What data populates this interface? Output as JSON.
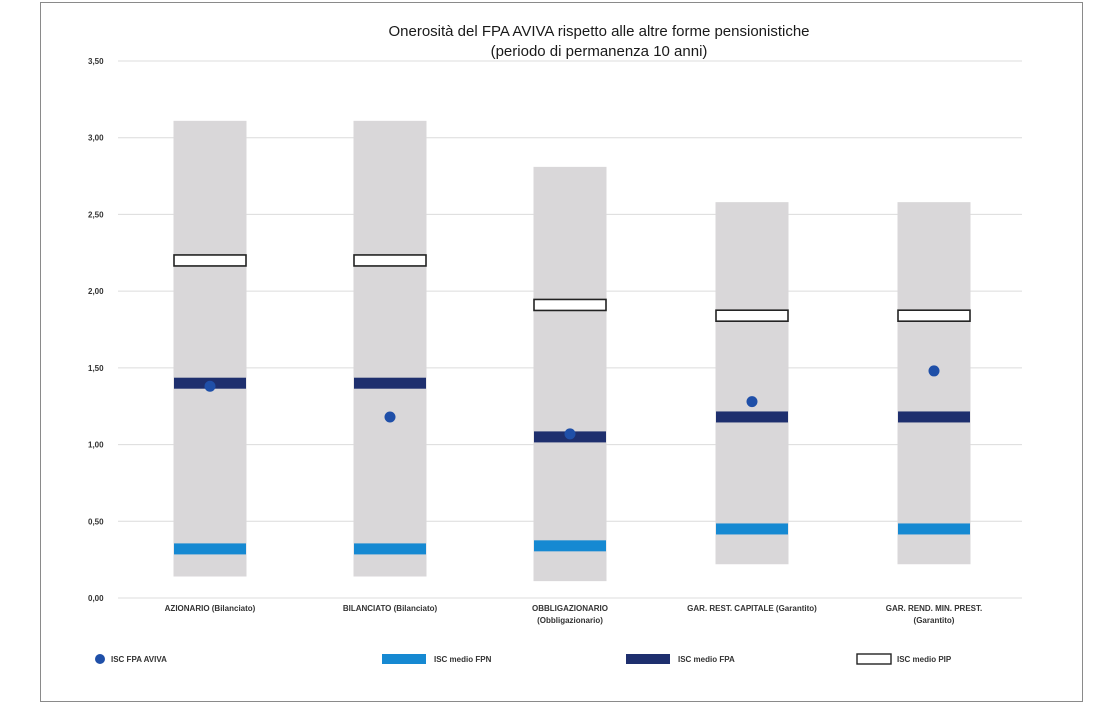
{
  "chart_data": {
    "type": "bar",
    "title": [
      "Onerosità del FPA AVIVA rispetto alle altre forme pensionistiche",
      "(periodo di permanenza 10 anni)"
    ],
    "ylim": [
      0,
      3.5
    ],
    "yticks": [
      "0,00",
      "0,50",
      "1,00",
      "1,50",
      "2,00",
      "2,50",
      "3,00",
      "3,50"
    ],
    "categories": [
      [
        "AZIONARIO (Bilanciato)"
      ],
      [
        "BILANCIATO (Bilanciato)"
      ],
      [
        "OBBLIGAZIONARIO",
        "(Obbligazionario)"
      ],
      [
        "GAR. REST. CAPITALE (Garantito)"
      ],
      [
        "GAR. REND. MIN. PREST.",
        "(Garantito)"
      ]
    ],
    "range_bars": [
      {
        "low": 0.14,
        "high": 3.11
      },
      {
        "low": 0.14,
        "high": 3.11
      },
      {
        "low": 0.11,
        "high": 2.81
      },
      {
        "low": 0.22,
        "high": 2.58
      },
      {
        "low": 0.22,
        "high": 2.58
      }
    ],
    "series": [
      {
        "name": "ISC FPA AVIVA",
        "marker": "dot",
        "color": "#1f4fa8",
        "values": [
          1.38,
          1.18,
          1.07,
          1.28,
          1.48
        ]
      },
      {
        "name": "ISC medio FPN",
        "marker": "dash",
        "color": "#1689d2",
        "values": [
          0.32,
          0.32,
          0.34,
          0.45,
          0.45
        ]
      },
      {
        "name": "ISC medio FPA",
        "marker": "dash",
        "color": "#1e2f6e",
        "values": [
          1.4,
          1.4,
          1.05,
          1.18,
          1.18
        ]
      },
      {
        "name": "ISC medio PIP",
        "marker": "hollow",
        "color": "#ffffff",
        "values": [
          2.2,
          2.2,
          1.91,
          1.84,
          1.84
        ]
      }
    ],
    "range_color": "#d9d7d9",
    "legend_position": "bottom",
    "grid": true
  }
}
